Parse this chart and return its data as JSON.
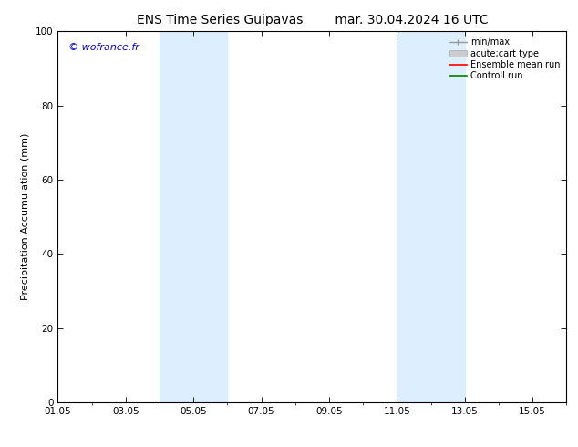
{
  "title": "ENS Time Series Guipavas        mar. 30.04.2024 16 UTC",
  "ylabel": "Precipitation Accumulation (mm)",
  "ylim": [
    0,
    100
  ],
  "xlim": [
    1,
    16
  ],
  "xtick_labels": [
    "01.05",
    "03.05",
    "05.05",
    "07.05",
    "09.05",
    "11.05",
    "13.05",
    "15.05"
  ],
  "xtick_positions": [
    1,
    3,
    5,
    7,
    9,
    11,
    13,
    15
  ],
  "ytick_labels": [
    "0",
    "20",
    "40",
    "60",
    "80",
    "100"
  ],
  "ytick_positions": [
    0,
    20,
    40,
    60,
    80,
    100
  ],
  "shaded_regions": [
    {
      "x_start": 4.0,
      "x_end": 6.0,
      "color": "#ddeeff"
    },
    {
      "x_start": 11.0,
      "x_end": 13.0,
      "color": "#ddeeff"
    }
  ],
  "watermark_text": "© wofrance.fr",
  "watermark_color": "#0000cc",
  "watermark_fontsize": 8,
  "background_color": "#ffffff",
  "title_fontsize": 10,
  "axis_label_fontsize": 8,
  "tick_fontsize": 7.5,
  "legend_fontsize": 7
}
